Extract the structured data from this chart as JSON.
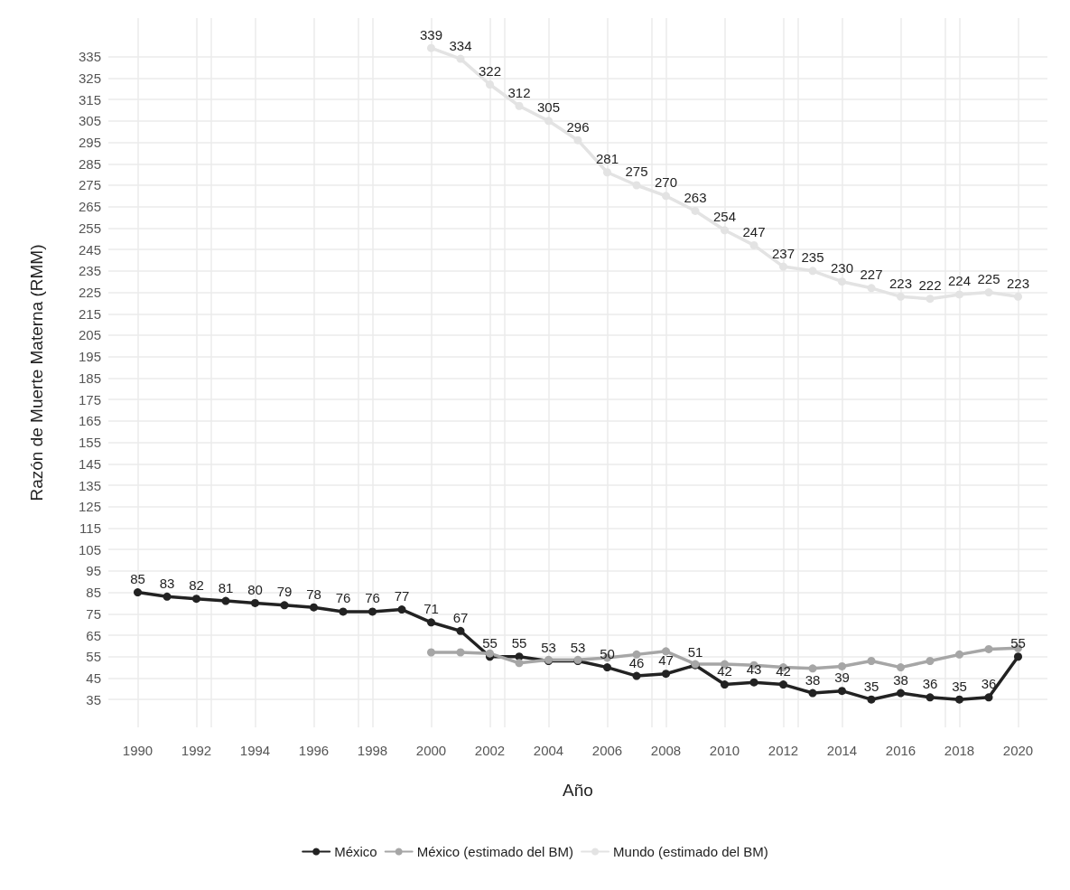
{
  "chart_data": {
    "type": "line",
    "xlabel": "Año",
    "ylabel": "Razón de Muerte Materna (RMM)",
    "x": [
      1990,
      1991,
      1992,
      1993,
      1994,
      1995,
      1996,
      1997,
      1998,
      1999,
      2000,
      2001,
      2002,
      2003,
      2004,
      2005,
      2006,
      2007,
      2008,
      2009,
      2010,
      2011,
      2012,
      2013,
      2014,
      2015,
      2016,
      2017,
      2018,
      2019,
      2020
    ],
    "series": [
      {
        "name": "México",
        "color": "#222222",
        "values": [
          85,
          83,
          82,
          81,
          80,
          79,
          78,
          76,
          76,
          77,
          71,
          67,
          55,
          55,
          53,
          53,
          50,
          46,
          47,
          51,
          42,
          43,
          42,
          38,
          39,
          35,
          38,
          36,
          35,
          36,
          55
        ],
        "value_labels": [
          "85",
          "83",
          "82",
          "81",
          "80",
          "79",
          "78",
          "76",
          "76",
          "77",
          "71",
          "67",
          "55",
          "55",
          "53",
          "53",
          "50",
          "46",
          "47",
          "51",
          "42",
          "43",
          "42",
          "38",
          "39",
          "35",
          "38",
          "36",
          "35",
          "36",
          "55"
        ]
      },
      {
        "name": "México (estimado del BM)",
        "color": "#a6a6a6",
        "x": [
          2000,
          2001,
          2002,
          2003,
          2004,
          2005,
          2006,
          2007,
          2008,
          2009,
          2010,
          2011,
          2012,
          2013,
          2014,
          2015,
          2016,
          2017,
          2018,
          2019,
          2020
        ],
        "values": [
          57,
          57,
          56.5,
          52,
          53.5,
          53.5,
          54.5,
          56,
          57.5,
          51.5,
          51.5,
          51,
          50,
          49.5,
          50.5,
          53,
          50,
          53,
          56,
          58.5,
          59
        ]
      },
      {
        "name": "Mundo (estimado del BM)",
        "color": "#e3e3e3",
        "x": [
          2000,
          2001,
          2002,
          2003,
          2004,
          2005,
          2006,
          2007,
          2008,
          2009,
          2010,
          2011,
          2012,
          2013,
          2014,
          2015,
          2016,
          2017,
          2018,
          2019,
          2020
        ],
        "values": [
          339,
          334,
          322,
          312,
          305,
          296,
          281,
          275,
          270,
          263,
          254,
          247,
          237,
          235,
          230,
          227,
          223,
          222,
          224,
          225,
          223
        ],
        "value_labels": [
          "339",
          "334",
          "322",
          "312",
          "305",
          "296",
          "281",
          "275",
          "270",
          "263",
          "254",
          "247",
          "237",
          "235",
          "230",
          "227",
          "223",
          "222",
          "224",
          "225",
          "223"
        ]
      }
    ],
    "xlim": [
      1989,
      2021
    ],
    "xticks": [
      1990,
      1992,
      1994,
      1996,
      1998,
      2000,
      2002,
      2004,
      2006,
      2008,
      2010,
      2012,
      2014,
      2016,
      2018,
      2020
    ],
    "ylim": [
      22,
      353
    ],
    "yticks": [
      35,
      45,
      55,
      65,
      75,
      85,
      95,
      105,
      115,
      125,
      135,
      145,
      155,
      165,
      175,
      185,
      195,
      205,
      215,
      225,
      235,
      245,
      255,
      265,
      275,
      285,
      295,
      305,
      315,
      325,
      335
    ],
    "grid": true,
    "legend": "bottom",
    "marker": "circle",
    "line_style": "solid"
  }
}
